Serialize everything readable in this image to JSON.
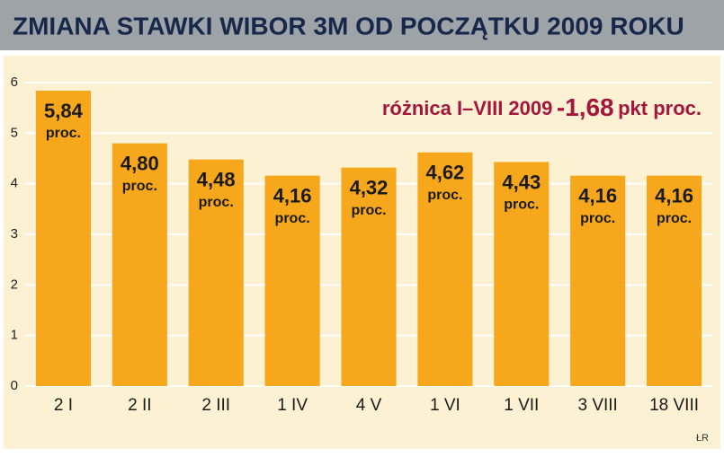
{
  "chart_data": {
    "type": "bar",
    "title": "ZMIANA STAWKI WIBOR 3M OD POCZĄTKU 2009 ROKU",
    "categories": [
      "2 I",
      "2 II",
      "2 III",
      "1 IV",
      "4 V",
      "1 VI",
      "1 VII",
      "3 VIII",
      "18 VIII"
    ],
    "values": [
      5.84,
      4.8,
      4.48,
      4.16,
      4.32,
      4.62,
      4.43,
      4.16,
      4.16
    ],
    "value_labels": [
      "5,84",
      "4,80",
      "4,48",
      "4,16",
      "4,32",
      "4,62",
      "4,43",
      "4,16",
      "4,16"
    ],
    "unit": "proc.",
    "color": "#f6a71c",
    "ylim": [
      0,
      6
    ],
    "yticks": [
      0,
      1,
      2,
      3,
      4,
      5,
      6
    ],
    "grid": true,
    "annotation": "różnica I–VIII 2009",
    "annotation_value": "-1,68",
    "annotation_unit": "pkt proc.",
    "source": "ŁR"
  }
}
